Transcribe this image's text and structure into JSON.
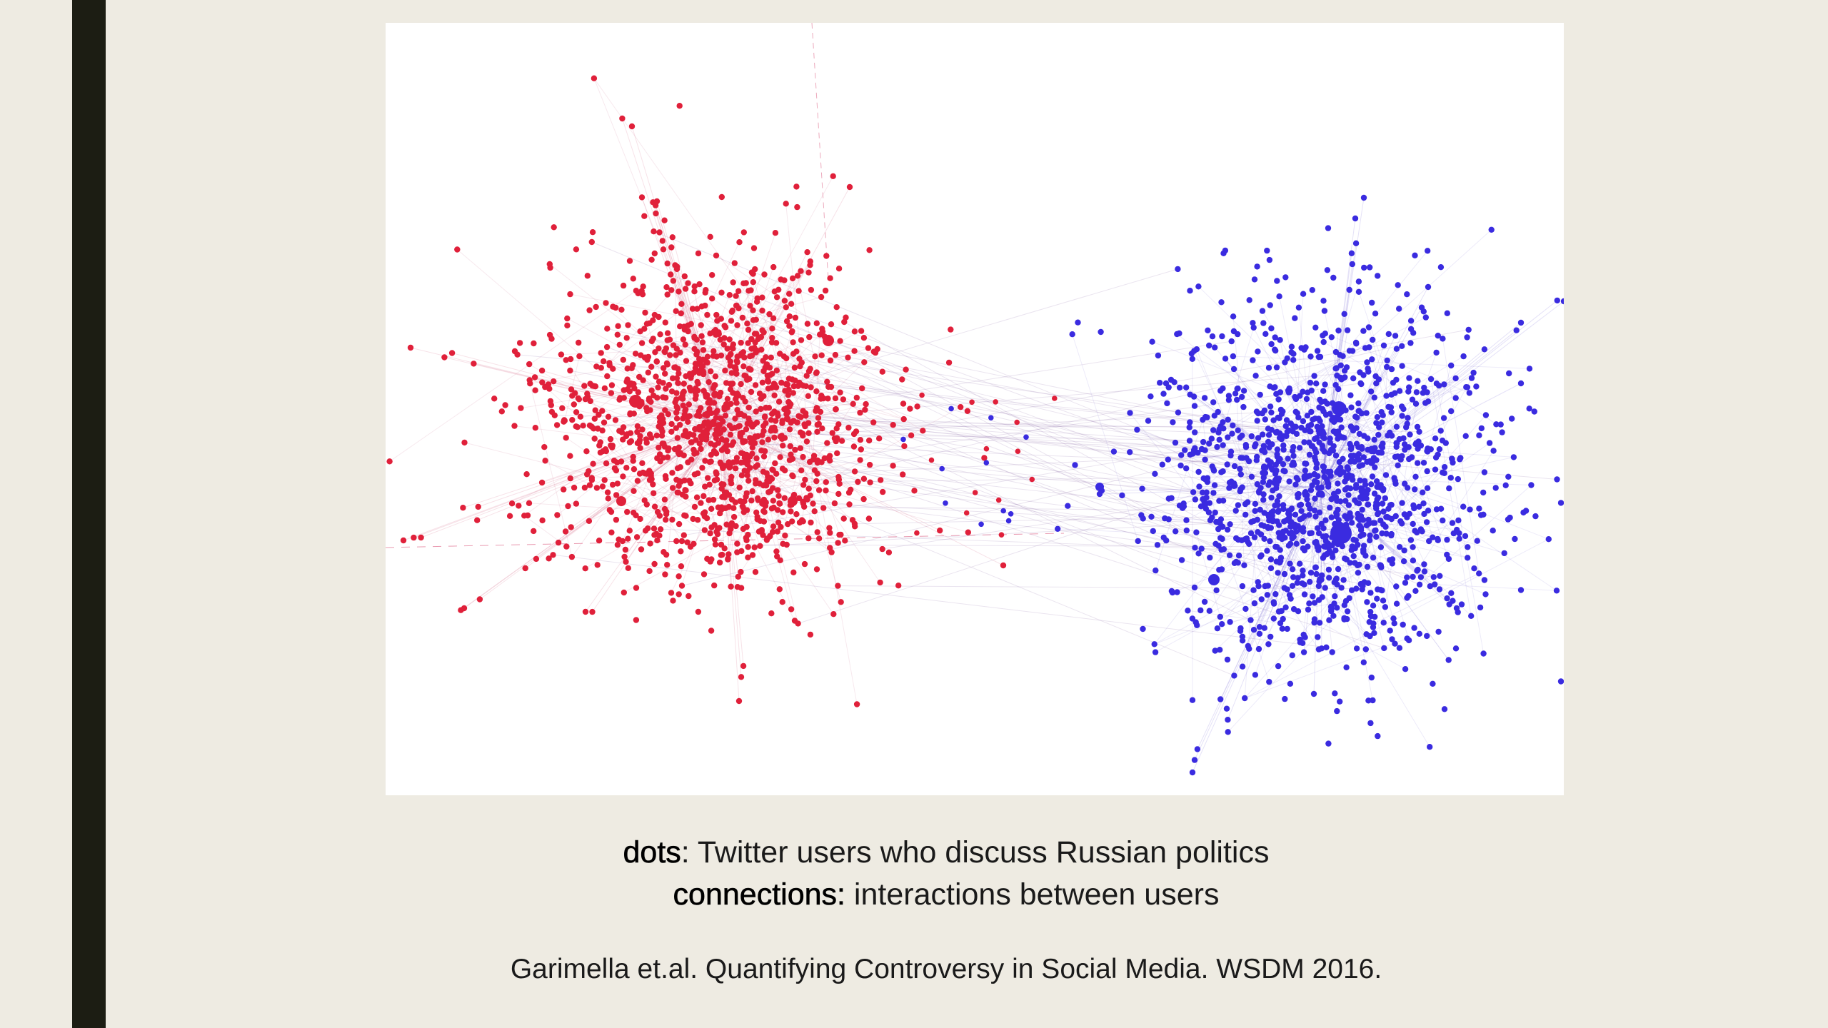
{
  "caption": {
    "line1_term": "dots",
    "line1_rest": ": Twitter users who discuss Russian politics",
    "line2_term": "connections:",
    "line2_rest": " interactions between users"
  },
  "citation": "Garimella et.al. Quantifying Controversy in Social Media. WSDM 2016.",
  "colors": {
    "red_cluster": "#e0203a",
    "blue_cluster": "#3a2be0",
    "background": "#eeebe2",
    "side_bar": "#1c1d13"
  }
}
